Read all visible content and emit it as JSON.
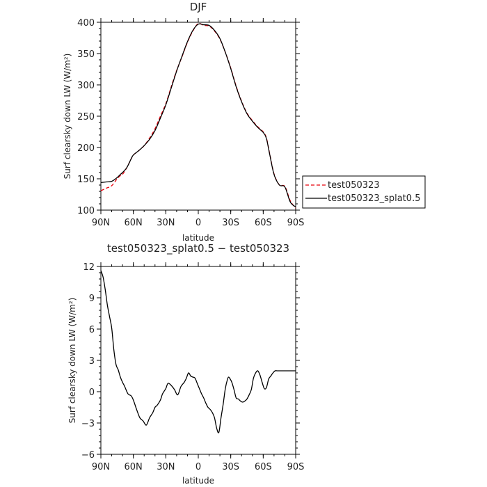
{
  "chart_data": [
    {
      "type": "line",
      "title": "DJF",
      "xlabel": "latitude",
      "ylabel": "Surf clearsky down LW (W/m²)",
      "xlim": [
        -90,
        90
      ],
      "ylim": [
        100,
        400
      ],
      "xticks": [
        -90,
        -60,
        -30,
        0,
        30,
        60,
        90
      ],
      "xtick_labels": [
        "90N",
        "60N",
        "30N",
        "0",
        "30S",
        "60S",
        "90S"
      ],
      "yticks": [
        100,
        150,
        200,
        250,
        300,
        350,
        400
      ],
      "ytick_labels": [
        "100",
        "150",
        "200",
        "250",
        "300",
        "350",
        "400"
      ],
      "legend": "right",
      "series": [
        {
          "name": "test050323",
          "color": "#e8000b",
          "dash": "dashed",
          "x": [
            -90,
            -85,
            -80,
            -75,
            -72,
            -70,
            -66,
            -62,
            -60,
            -55,
            -50,
            -45,
            -40,
            -35,
            -30,
            -25,
            -20,
            -15,
            -10,
            -5,
            0,
            5,
            10,
            15,
            20,
            25,
            30,
            35,
            40,
            45,
            50,
            55,
            60,
            63,
            66,
            70,
            75,
            80,
            85,
            90
          ],
          "y": [
            131,
            135,
            139,
            150,
            155,
            157,
            168,
            182,
            188,
            195,
            203,
            215,
            230,
            250,
            270,
            297,
            323,
            345,
            368,
            386,
            398,
            395,
            394,
            386,
            373,
            352,
            327,
            298,
            274,
            255,
            243,
            233,
            225,
            215,
            190,
            158,
            140,
            138,
            115,
            103
          ]
        },
        {
          "name": "test050323_splat0.5",
          "color": "#000000",
          "dash": "solid",
          "x": [
            -90,
            -85,
            -80,
            -75,
            -72,
            -70,
            -66,
            -62,
            -60,
            -55,
            -50,
            -45,
            -40,
            -35,
            -30,
            -25,
            -20,
            -15,
            -10,
            -5,
            0,
            5,
            10,
            15,
            20,
            25,
            30,
            35,
            40,
            45,
            50,
            55,
            60,
            63,
            66,
            70,
            75,
            80,
            85,
            90
          ],
          "y": [
            144,
            145,
            146,
            152,
            157,
            160,
            168,
            182,
            188,
            195,
            203,
            213,
            227,
            247,
            268,
            295,
            322,
            346,
            369,
            387,
            397,
            396,
            395,
            387,
            374,
            352,
            326,
            297,
            273,
            254,
            242,
            232,
            224,
            214,
            189,
            157,
            140,
            137,
            113,
            105
          ]
        }
      ]
    },
    {
      "type": "line",
      "title": "test050323_splat0.5 − test050323",
      "xlabel": "latitude",
      "ylabel": "Surf clearsky down LW (W/m²)",
      "xlim": [
        -90,
        90
      ],
      "ylim": [
        -6,
        12
      ],
      "xticks": [
        -90,
        -60,
        -30,
        0,
        30,
        60,
        90
      ],
      "xtick_labels": [
        "90N",
        "60N",
        "30N",
        "0",
        "30S",
        "60S",
        "90S"
      ],
      "yticks": [
        -6,
        -3,
        0,
        3,
        6,
        9,
        12
      ],
      "ytick_labels": [
        "−6",
        "−3",
        "0",
        "3",
        "6",
        "9",
        "12"
      ],
      "series": [
        {
          "color": "#000000",
          "dash": "solid",
          "x": [
            -90,
            -88,
            -86,
            -84,
            -82,
            -80,
            -78,
            -76,
            -74,
            -72,
            -70,
            -68,
            -65,
            -62,
            -60,
            -57,
            -54,
            -51,
            -48,
            -45,
            -42,
            -40,
            -38,
            -35,
            -33,
            -30,
            -28,
            -25,
            -22,
            -19,
            -16,
            -13,
            -11,
            -9,
            -7,
            -5,
            -3,
            -1,
            1,
            3,
            5,
            7,
            9,
            11,
            13,
            15,
            17,
            19,
            21,
            23,
            25,
            27,
            28,
            29,
            31,
            33,
            35,
            37,
            39,
            41,
            43,
            45,
            47,
            49,
            51,
            53,
            55,
            57,
            59,
            61,
            63,
            65,
            67,
            69,
            71,
            73,
            75,
            77,
            79,
            81,
            83,
            85,
            87,
            89,
            90
          ],
          "y": [
            11.6,
            11.0,
            9.8,
            8.3,
            7.2,
            6.1,
            4.0,
            2.6,
            2.1,
            1.4,
            0.9,
            0.5,
            -0.2,
            -0.4,
            -0.8,
            -1.7,
            -2.5,
            -2.8,
            -3.2,
            -2.5,
            -2.0,
            -1.5,
            -1.3,
            -0.8,
            -0.2,
            0.3,
            0.8,
            0.6,
            0.2,
            -0.3,
            0.5,
            0.9,
            1.3,
            1.8,
            1.5,
            1.4,
            1.3,
            0.8,
            0.3,
            -0.2,
            -0.6,
            -1.1,
            -1.5,
            -1.7,
            -2.0,
            -2.5,
            -3.5,
            -3.9,
            -2.5,
            -1.2,
            0.3,
            1.2,
            1.4,
            1.3,
            0.9,
            0.2,
            -0.6,
            -0.7,
            -0.9,
            -1.0,
            -0.9,
            -0.7,
            -0.3,
            0.2,
            1.3,
            1.8,
            2.0,
            1.6,
            0.9,
            0.3,
            0.4,
            1.2,
            1.5,
            1.8,
            2.0,
            2.0,
            2.0,
            2.0,
            2.0,
            2.0,
            2.0,
            2.0,
            2.0,
            2.0,
            2.0
          ]
        }
      ]
    }
  ]
}
